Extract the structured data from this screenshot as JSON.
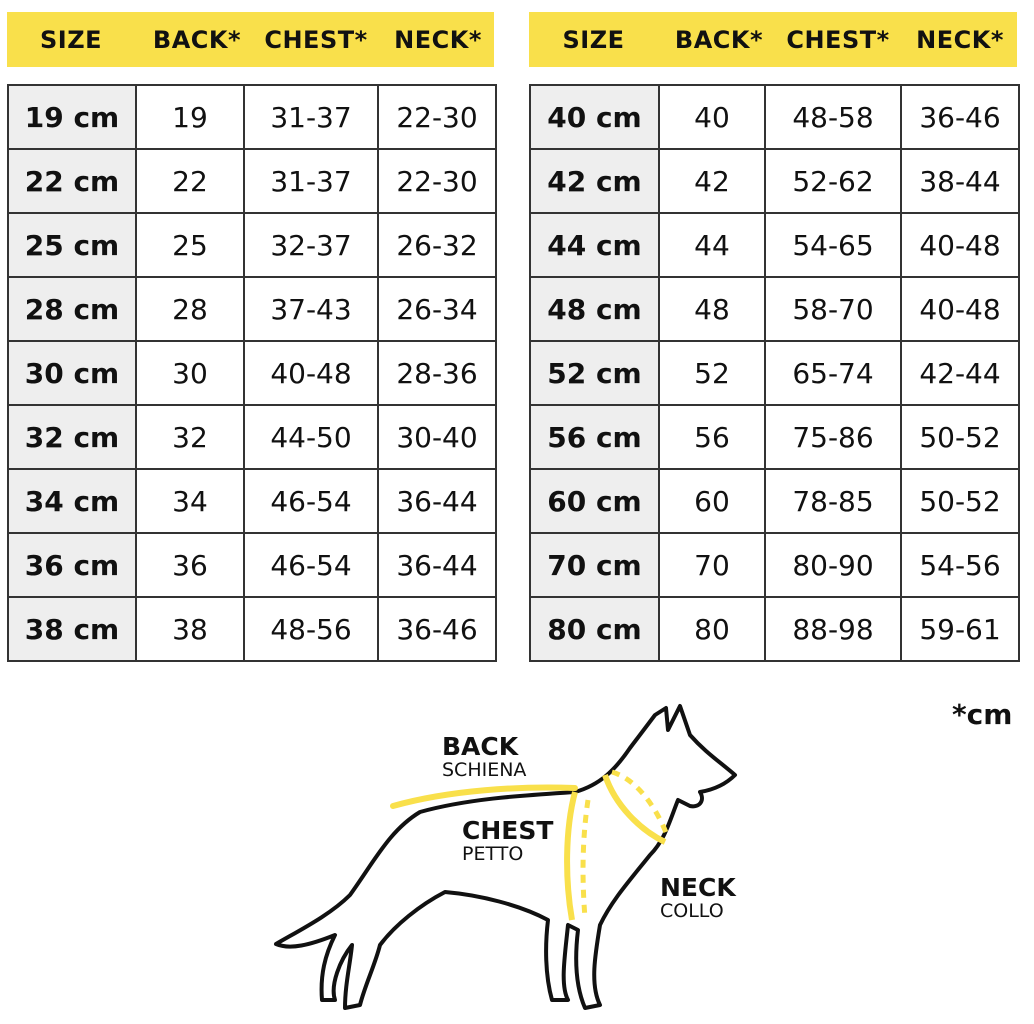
{
  "headers": [
    "SIZE",
    "BACK*",
    "CHEST*",
    "NECK*"
  ],
  "left_table": [
    [
      "19 cm",
      "19",
      "31-37",
      "22-30"
    ],
    [
      "22 cm",
      "22",
      "31-37",
      "22-30"
    ],
    [
      "25 cm",
      "25",
      "32-37",
      "26-32"
    ],
    [
      "28 cm",
      "28",
      "37-43",
      "26-34"
    ],
    [
      "30 cm",
      "30",
      "40-48",
      "28-36"
    ],
    [
      "32 cm",
      "32",
      "44-50",
      "30-40"
    ],
    [
      "34 cm",
      "34",
      "46-54",
      "36-44"
    ],
    [
      "36 cm",
      "36",
      "46-54",
      "36-44"
    ],
    [
      "38 cm",
      "38",
      "48-56",
      "36-46"
    ]
  ],
  "right_table": [
    [
      "40 cm",
      "40",
      "48-58",
      "36-46"
    ],
    [
      "42 cm",
      "42",
      "52-62",
      "38-44"
    ],
    [
      "44 cm",
      "44",
      "54-65",
      "40-48"
    ],
    [
      "48 cm",
      "48",
      "58-70",
      "40-48"
    ],
    [
      "52 cm",
      "52",
      "65-74",
      "42-44"
    ],
    [
      "56 cm",
      "56",
      "75-86",
      "50-52"
    ],
    [
      "60 cm",
      "60",
      "78-85",
      "50-52"
    ],
    [
      "70 cm",
      "70",
      "80-90",
      "54-56"
    ],
    [
      "80 cm",
      "80",
      "88-98",
      "59-61"
    ]
  ],
  "unit_note": "*cm",
  "diagram": {
    "back": {
      "label": "BACK",
      "sub": "SCHIENA"
    },
    "chest": {
      "label": "CHEST",
      "sub": "PETTO"
    },
    "neck": {
      "label": "NECK",
      "sub": "COLLO"
    }
  },
  "colors": {
    "accent": "#f9e04b",
    "size_cell": "#eeeeee"
  }
}
